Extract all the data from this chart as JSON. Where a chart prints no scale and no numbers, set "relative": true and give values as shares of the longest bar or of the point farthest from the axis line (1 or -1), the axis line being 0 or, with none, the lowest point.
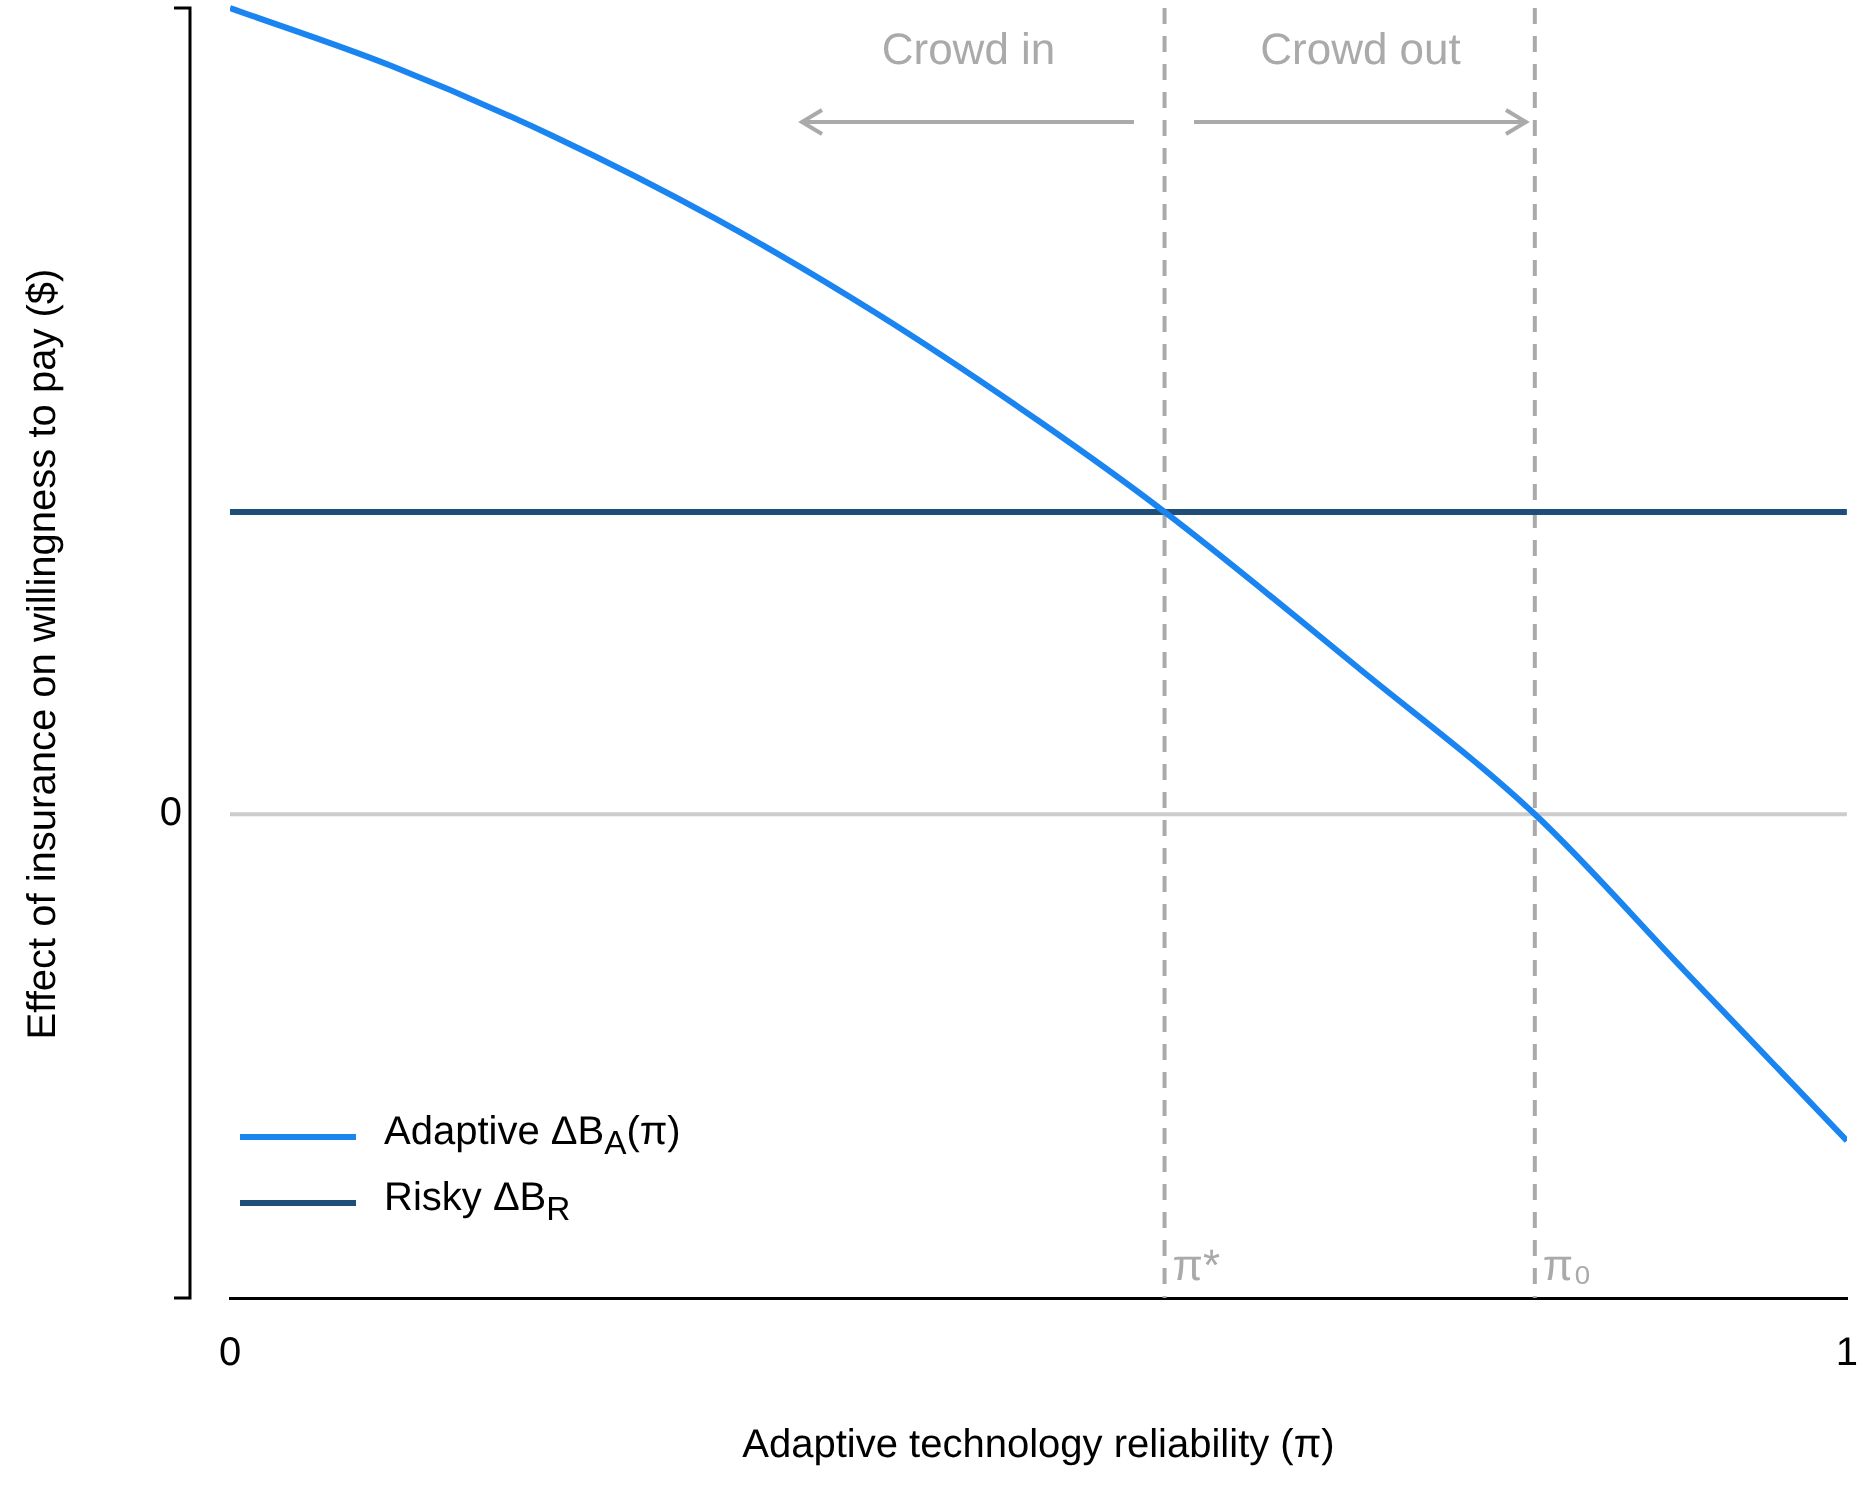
{
  "chart_data": {
    "type": "line",
    "relative": true,
    "xlabel": "Adaptive technology reliability (π)",
    "ylabel": "Effect of insurance on willingness to pay ($)",
    "xlim": [
      0,
      1
    ],
    "xticks": [
      0,
      1
    ],
    "legend": "bottom left",
    "grid": false,
    "marker": "none",
    "line_style": "solid",
    "series": [
      {
        "name": "Adaptive ΔB$_{A}$(π)",
        "color": "#1a85f0",
        "x": [
          0,
          0.1,
          0.2,
          0.3,
          0.4,
          0.5,
          0.578,
          0.7,
          0.807,
          0.9,
          1
        ],
        "values": [
          1,
          0.928,
          0.841,
          0.739,
          0.621,
          0.488,
          0.375,
          0.178,
          0,
          -0.195,
          -0.405
        ]
      },
      {
        "name": "Risky ΔB$_{R}$",
        "color": "#1f4e79",
        "x": [
          0,
          1
        ],
        "values": [
          0.375,
          0.375
        ]
      }
    ],
    "ref_lines": [
      {
        "axis": "y",
        "value": 0,
        "label": "0",
        "color": "#cccccc",
        "line_style": "solid"
      },
      {
        "axis": "x",
        "value": 0.578,
        "label": "π*",
        "color": "#aaaaaa",
        "line_style": "dashed"
      },
      {
        "axis": "x",
        "value": 0.807,
        "label": "π₀",
        "color": "#aaaaaa",
        "line_style": "dashed"
      }
    ],
    "annotations": [
      "Crowd in",
      "Crowd out"
    ]
  }
}
